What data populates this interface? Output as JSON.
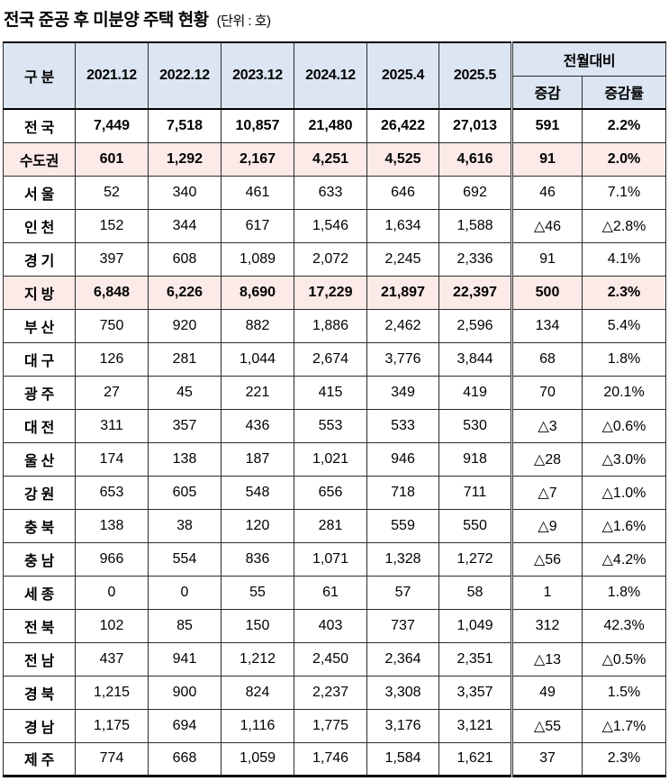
{
  "title": {
    "main": "전국 준공 후 미분양 주택 현황",
    "unit": "(단위 : 호)"
  },
  "colors": {
    "header_bg": "#DCE6F2",
    "highlight_bg": "#FBEAE7",
    "border": "#2b2b2b",
    "frame": "#000000"
  },
  "table": {
    "header": {
      "category": "구 분",
      "periods": [
        "2021.12",
        "2022.12",
        "2023.12",
        "2024.12",
        "2025.4",
        "2025.5"
      ],
      "mom_group": "전월대비",
      "mom_cols": [
        "증감",
        "증감률"
      ]
    },
    "rows": [
      {
        "name": "전 국",
        "type": "total",
        "values": [
          "7,449",
          "7,518",
          "10,857",
          "21,480",
          "26,422",
          "27,013"
        ],
        "change": "591",
        "rate": "2.2%"
      },
      {
        "name": "수도권",
        "type": "subtotal",
        "values": [
          "601",
          "1,292",
          "2,167",
          "4,251",
          "4,525",
          "4,616"
        ],
        "change": "91",
        "rate": "2.0%"
      },
      {
        "name": "서 울",
        "type": "region",
        "values": [
          "52",
          "340",
          "461",
          "633",
          "646",
          "692"
        ],
        "change": "46",
        "rate": "7.1%"
      },
      {
        "name": "인 천",
        "type": "region",
        "values": [
          "152",
          "344",
          "617",
          "1,546",
          "1,634",
          "1,588"
        ],
        "change": "△46",
        "rate": "△2.8%"
      },
      {
        "name": "경 기",
        "type": "region",
        "values": [
          "397",
          "608",
          "1,089",
          "2,072",
          "2,245",
          "2,336"
        ],
        "change": "91",
        "rate": "4.1%"
      },
      {
        "name": "지 방",
        "type": "subtotal",
        "values": [
          "6,848",
          "6,226",
          "8,690",
          "17,229",
          "21,897",
          "22,397"
        ],
        "change": "500",
        "rate": "2.3%"
      },
      {
        "name": "부 산",
        "type": "region",
        "values": [
          "750",
          "920",
          "882",
          "1,886",
          "2,462",
          "2,596"
        ],
        "change": "134",
        "rate": "5.4%"
      },
      {
        "name": "대 구",
        "type": "region",
        "values": [
          "126",
          "281",
          "1,044",
          "2,674",
          "3,776",
          "3,844"
        ],
        "change": "68",
        "rate": "1.8%"
      },
      {
        "name": "광 주",
        "type": "region",
        "values": [
          "27",
          "45",
          "221",
          "415",
          "349",
          "419"
        ],
        "change": "70",
        "rate": "20.1%"
      },
      {
        "name": "대 전",
        "type": "region",
        "values": [
          "311",
          "357",
          "436",
          "553",
          "533",
          "530"
        ],
        "change": "△3",
        "rate": "△0.6%"
      },
      {
        "name": "울 산",
        "type": "region",
        "values": [
          "174",
          "138",
          "187",
          "1,021",
          "946",
          "918"
        ],
        "change": "△28",
        "rate": "△3.0%"
      },
      {
        "name": "강 원",
        "type": "region",
        "values": [
          "653",
          "605",
          "548",
          "656",
          "718",
          "711"
        ],
        "change": "△7",
        "rate": "△1.0%"
      },
      {
        "name": "충 북",
        "type": "region",
        "values": [
          "138",
          "38",
          "120",
          "281",
          "559",
          "550"
        ],
        "change": "△9",
        "rate": "△1.6%"
      },
      {
        "name": "충 남",
        "type": "region",
        "values": [
          "966",
          "554",
          "836",
          "1,071",
          "1,328",
          "1,272"
        ],
        "change": "△56",
        "rate": "△4.2%"
      },
      {
        "name": "세 종",
        "type": "region",
        "values": [
          "0",
          "0",
          "55",
          "61",
          "57",
          "58"
        ],
        "change": "1",
        "rate": "1.8%"
      },
      {
        "name": "전 북",
        "type": "region",
        "values": [
          "102",
          "85",
          "150",
          "403",
          "737",
          "1,049"
        ],
        "change": "312",
        "rate": "42.3%"
      },
      {
        "name": "전 남",
        "type": "region",
        "values": [
          "437",
          "941",
          "1,212",
          "2,450",
          "2,364",
          "2,351"
        ],
        "change": "△13",
        "rate": "△0.5%"
      },
      {
        "name": "경 북",
        "type": "region",
        "values": [
          "1,215",
          "900",
          "824",
          "2,237",
          "3,308",
          "3,357"
        ],
        "change": "49",
        "rate": "1.5%"
      },
      {
        "name": "경 남",
        "type": "region",
        "values": [
          "1,175",
          "694",
          "1,116",
          "1,775",
          "3,176",
          "3,121"
        ],
        "change": "△55",
        "rate": "△1.7%"
      },
      {
        "name": "제 주",
        "type": "region",
        "values": [
          "774",
          "668",
          "1,059",
          "1,746",
          "1,584",
          "1,621"
        ],
        "change": "37",
        "rate": "2.3%"
      }
    ]
  }
}
